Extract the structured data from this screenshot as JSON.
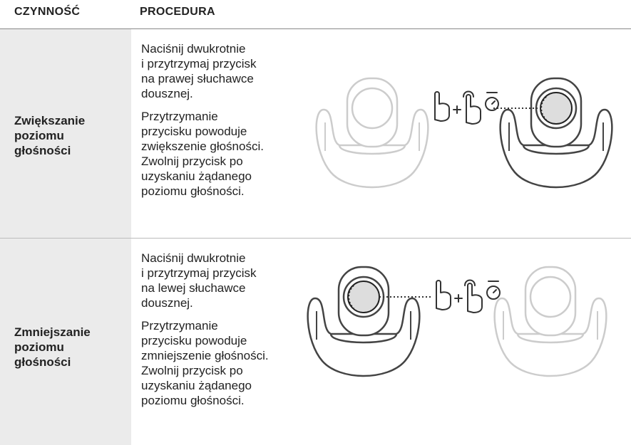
{
  "header": {
    "columns": [
      "CZYNNOŚĆ",
      "PROCEDURA"
    ]
  },
  "rows": [
    {
      "action": [
        "Zwiększanie",
        "poziomu",
        "głośności"
      ],
      "procedure": [
        [
          "Naciśnij dwukrotnie",
          "i przytrzymaj przycisk",
          "na prawej słuchawce",
          "dousznej."
        ],
        [
          "Przytrzymanie",
          "przycisku powoduje",
          "zwiększenie głośności.",
          "Zwolnij przycisk po",
          "uzyskaniu żądanego",
          "poziomu głośności."
        ]
      ]
    },
    {
      "action": [
        "Zmniejszanie",
        "poziomu",
        "głośności"
      ],
      "procedure": [
        [
          "Naciśnij dwukrotnie",
          "i przytrzymaj przycisk",
          "na lewej słuchawce",
          "dousznej."
        ],
        [
          "Przytrzymanie",
          "przycisku powoduje",
          "zmniejszenie głośności.",
          "Zwolnij przycisk po",
          "uzyskaniu żądanego",
          "poziomu głośności."
        ]
      ]
    }
  ]
}
